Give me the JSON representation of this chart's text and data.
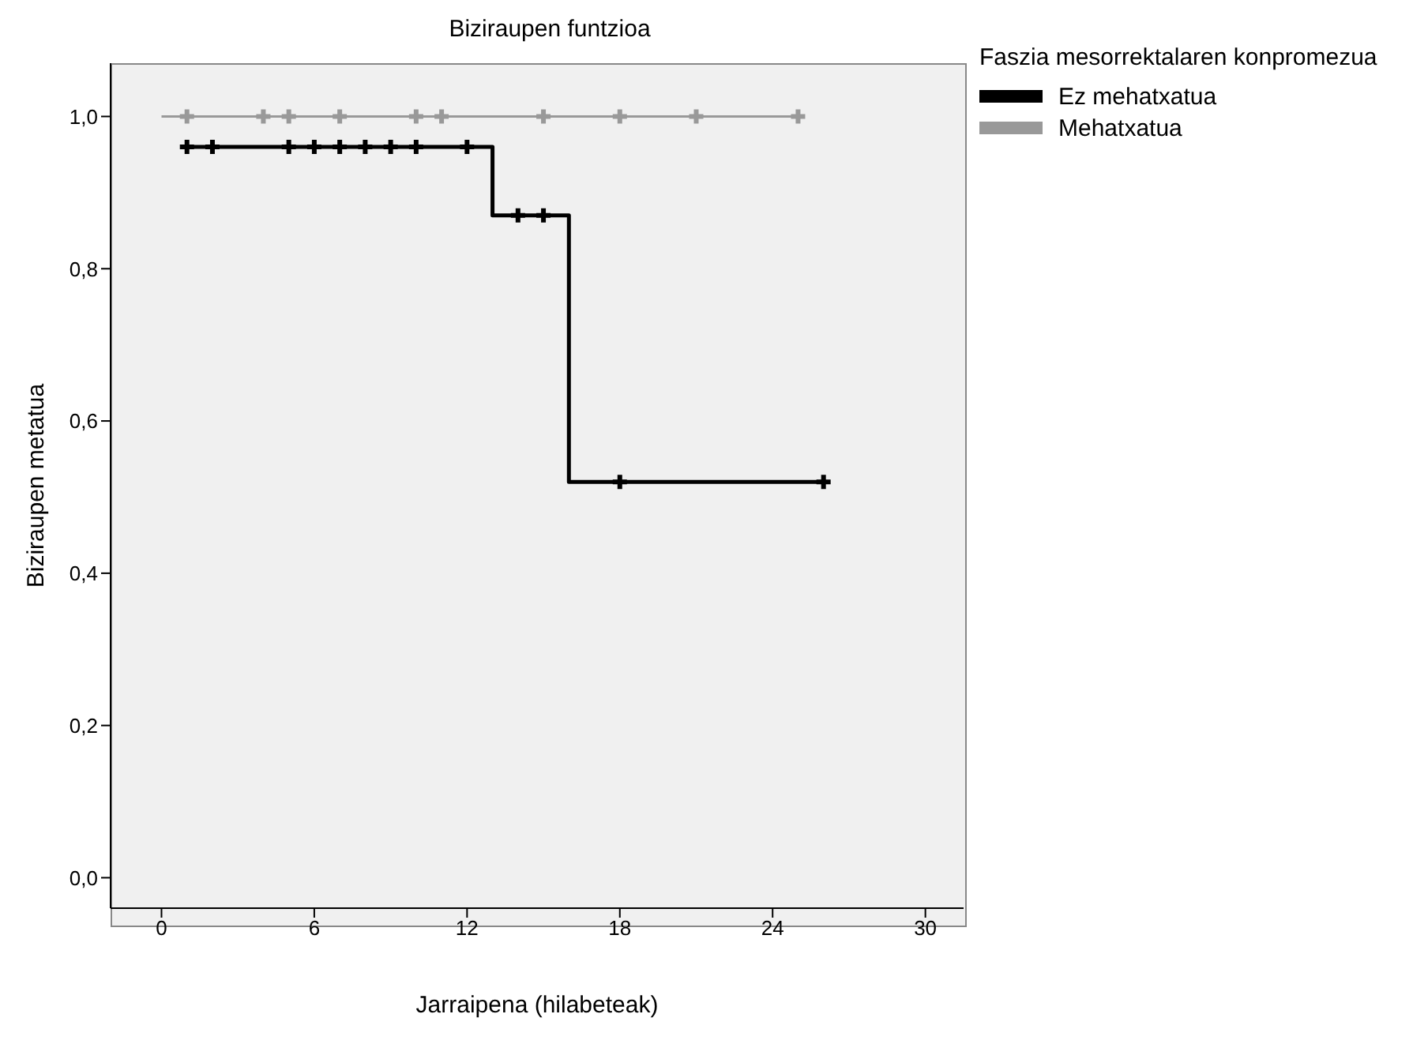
{
  "chart_data": {
    "type": "step",
    "title": "Biziraupen funtzioa",
    "xlabel": "Jarraipena (hilabeteak)",
    "ylabel": "Biziraupen metatua",
    "legend_title": "Faszia mesorrektalaren konpromezua",
    "legend": "top right",
    "grid": false,
    "xlim": [
      -2,
      31.5
    ],
    "xticks": [
      0,
      6,
      12,
      18,
      24,
      30
    ],
    "ylim": [
      -0.04,
      1.07
    ],
    "yticks": [
      {
        "value": 0,
        "label": "0,0"
      },
      {
        "value": 0.2,
        "label": "0,2"
      },
      {
        "value": 0.4,
        "label": "0,4"
      },
      {
        "value": 0.6,
        "label": "0,6"
      },
      {
        "value": 0.8,
        "label": "0,8"
      },
      {
        "value": 1,
        "label": "1,0"
      }
    ],
    "series": [
      {
        "name": "Ez mehatxatua",
        "color": "#000000",
        "x": [
          1,
          13,
          16,
          26
        ],
        "values": [
          0.96,
          0.87,
          0.52,
          0.52
        ]
      },
      {
        "name": "Mehatxatua",
        "color": "#999999",
        "x": [
          0,
          25
        ],
        "values": [
          1,
          1
        ]
      },
      {
        "type": "scatter",
        "marker": "cross",
        "color": "#999999",
        "x": [
          1,
          4,
          5,
          7,
          10,
          11,
          15,
          18,
          21,
          25
        ],
        "values": [
          1,
          1,
          1,
          1,
          1,
          1,
          1,
          1,
          1,
          1
        ]
      },
      {
        "type": "scatter",
        "marker": "cross",
        "color": "#000000",
        "x": [
          1,
          2,
          5,
          6,
          7,
          8,
          9,
          10,
          12,
          14,
          15,
          18,
          26
        ],
        "values": [
          0.96,
          0.96,
          0.96,
          0.96,
          0.96,
          0.96,
          0.96,
          0.96,
          0.96,
          0.87,
          0.87,
          0.52,
          0.52
        ]
      }
    ]
  }
}
